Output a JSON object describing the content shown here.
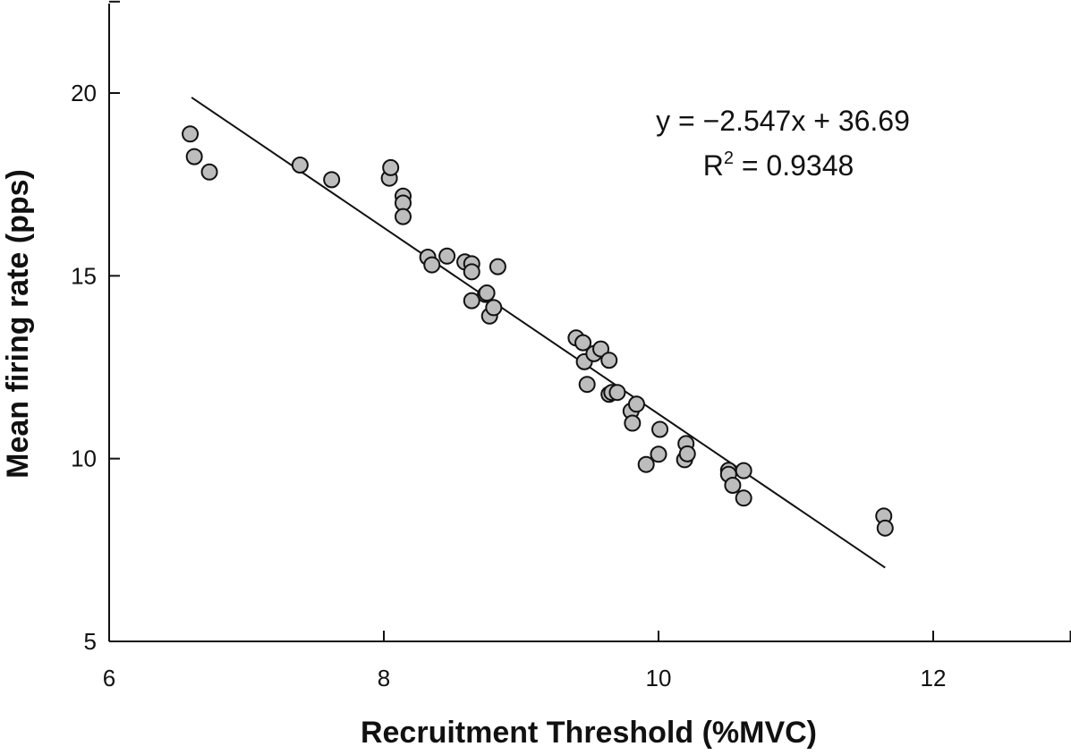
{
  "chart_data": {
    "type": "scatter",
    "title": "",
    "xlabel": "Recruitment Threshold (%MVC)",
    "ylabel": "Mean firing rate (pps)",
    "xlim": [
      6,
      13
    ],
    "ylim": [
      5,
      22.5
    ],
    "xticks": [
      6,
      8,
      10,
      12
    ],
    "yticks": [
      5,
      10,
      15,
      20
    ],
    "xtick_labels": [
      "6",
      "8",
      "10",
      "12"
    ],
    "ytick_labels": [
      "5",
      "10",
      "15",
      "20"
    ],
    "grid": false,
    "legend": "none",
    "marker_fill": "#bdbdbd",
    "marker_edge": "#111111",
    "line_color": "#111111",
    "annotations": {
      "equation": "y = −2.547x + 36.69",
      "r2_prefix": "R",
      "r2_sup": "2",
      "r2_suffix": " = 0.9348"
    },
    "trendline": {
      "slope": -2.547,
      "intercept": 36.69,
      "x_start": 6.6,
      "x_end": 11.65
    },
    "series": [
      {
        "points": [
          [
            6.59,
            18.88
          ],
          [
            6.62,
            18.26
          ],
          [
            6.73,
            17.84
          ],
          [
            7.39,
            18.03
          ],
          [
            7.62,
            17.63
          ],
          [
            8.04,
            17.67
          ],
          [
            8.05,
            17.96
          ],
          [
            8.14,
            17.18
          ],
          [
            8.14,
            16.99
          ],
          [
            8.14,
            16.62
          ],
          [
            8.32,
            15.51
          ],
          [
            8.35,
            15.3
          ],
          [
            8.46,
            15.54
          ],
          [
            8.59,
            15.38
          ],
          [
            8.64,
            15.33
          ],
          [
            8.64,
            15.11
          ],
          [
            8.64,
            14.32
          ],
          [
            8.83,
            15.25
          ],
          [
            8.74,
            14.49
          ],
          [
            8.75,
            14.53
          ],
          [
            8.77,
            13.9
          ],
          [
            8.8,
            14.13
          ],
          [
            9.4,
            13.3
          ],
          [
            9.45,
            13.17
          ],
          [
            9.46,
            12.65
          ],
          [
            9.48,
            12.03
          ],
          [
            9.53,
            12.87
          ],
          [
            9.58,
            13.0
          ],
          [
            9.64,
            12.69
          ],
          [
            9.64,
            11.76
          ],
          [
            9.66,
            11.81
          ],
          [
            9.7,
            11.81
          ],
          [
            9.8,
            11.3
          ],
          [
            9.81,
            10.97
          ],
          [
            9.84,
            11.49
          ],
          [
            9.91,
            9.84
          ],
          [
            10.0,
            10.12
          ],
          [
            10.01,
            10.8
          ],
          [
            10.19,
            9.97
          ],
          [
            10.2,
            10.41
          ],
          [
            10.21,
            10.13
          ],
          [
            10.51,
            9.68
          ],
          [
            10.51,
            9.57
          ],
          [
            10.54,
            9.27
          ],
          [
            10.62,
            9.67
          ],
          [
            10.62,
            8.92
          ],
          [
            11.64,
            8.43
          ],
          [
            11.65,
            8.1
          ]
        ]
      }
    ]
  }
}
